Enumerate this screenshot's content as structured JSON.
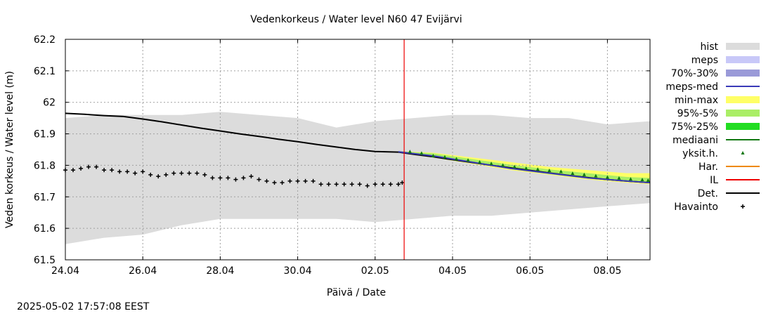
{
  "chart_data": {
    "type": "line",
    "title": "Vedenkorkeus / Water level   N60 47 Evijärvi",
    "xlabel": "Päivä / Date",
    "ylabel": "Veden korkeus / Water level (m)",
    "x_range_days": [
      0,
      15.1
    ],
    "ylim": [
      61.5,
      62.2
    ],
    "grid": true,
    "legend_position": "right",
    "x_ticks": [
      {
        "day": 0,
        "label": "24.04"
      },
      {
        "day": 2,
        "label": "26.04"
      },
      {
        "day": 4,
        "label": "28.04"
      },
      {
        "day": 6,
        "label": "30.04"
      },
      {
        "day": 8,
        "label": "02.05"
      },
      {
        "day": 10,
        "label": "04.05"
      },
      {
        "day": 12,
        "label": "06.05"
      },
      {
        "day": 14,
        "label": "08.05"
      }
    ],
    "y_ticks": [
      {
        "value": 62.2,
        "label": "62.2"
      },
      {
        "value": 62.1,
        "label": "62.1"
      },
      {
        "value": 62.0,
        "label": "62"
      },
      {
        "value": 61.9,
        "label": "61.9"
      },
      {
        "value": 61.8,
        "label": "61.8"
      },
      {
        "value": 61.7,
        "label": "61.7"
      },
      {
        "value": 61.6,
        "label": "61.6"
      },
      {
        "value": 61.5,
        "label": "61.5"
      }
    ],
    "current_time_day": 8.75,
    "legend": [
      {
        "label": "hist",
        "kind": "box",
        "color": "#dcdcdc"
      },
      {
        "label": "meps",
        "kind": "box",
        "color": "#c8c8f8"
      },
      {
        "label": "70%-30%",
        "kind": "box",
        "color": "#9a9ad8"
      },
      {
        "label": "meps-med",
        "kind": "line",
        "color": "#3a3ab8"
      },
      {
        "label": "min-max",
        "kind": "box",
        "color": "#ffff66"
      },
      {
        "label": "95%-5%",
        "kind": "box",
        "color": "#aaee66"
      },
      {
        "label": "75%-25%",
        "kind": "box",
        "color": "#22dd22"
      },
      {
        "label": "mediaani",
        "kind": "line",
        "color": "#117711"
      },
      {
        "label": "yksit.h.",
        "kind": "dot",
        "color": "#117711"
      },
      {
        "label": "Har.",
        "kind": "line",
        "color": "#ee8800"
      },
      {
        "label": "IL",
        "kind": "line",
        "color": "#ee0000"
      },
      {
        "label": "Det.",
        "kind": "line",
        "color": "#000000"
      },
      {
        "label": "Havainto",
        "kind": "plus",
        "color": "#000000"
      }
    ],
    "series": [
      {
        "name": "hist",
        "kind": "band",
        "color": "#dcdcdc",
        "x": [
          0,
          1,
          2,
          3,
          4,
          5,
          6,
          7,
          8,
          9,
          10,
          11,
          12,
          13,
          14,
          15.1
        ],
        "upper": [
          61.95,
          61.96,
          61.96,
          61.96,
          61.97,
          61.96,
          61.95,
          61.92,
          61.94,
          61.95,
          61.96,
          61.96,
          61.95,
          61.95,
          61.93,
          61.94
        ],
        "lower": [
          61.55,
          61.57,
          61.58,
          61.61,
          61.63,
          61.63,
          61.63,
          61.63,
          61.62,
          61.63,
          61.64,
          61.64,
          61.65,
          61.66,
          61.67,
          61.68
        ]
      },
      {
        "name": "min-max",
        "kind": "band",
        "color": "#ffff66",
        "x": [
          8.6,
          9.5,
          10.5,
          11.5,
          12.5,
          13.5,
          14.5,
          15.1
        ],
        "upper": [
          61.845,
          61.84,
          61.825,
          61.81,
          61.795,
          61.785,
          61.775,
          61.775
        ],
        "lower": [
          61.84,
          61.825,
          61.805,
          61.785,
          61.77,
          61.755,
          61.745,
          61.74
        ]
      },
      {
        "name": "95%-5%",
        "kind": "band",
        "color": "#aaee66",
        "x": [
          8.6,
          9.5,
          10.5,
          11.5,
          12.5,
          13.5,
          14.5,
          15.1
        ],
        "upper": [
          61.845,
          61.838,
          61.82,
          61.802,
          61.787,
          61.775,
          61.763,
          61.76
        ],
        "lower": [
          61.84,
          61.827,
          61.808,
          61.788,
          61.772,
          61.758,
          61.748,
          61.743
        ]
      },
      {
        "name": "Det.",
        "kind": "line",
        "color": "#000000",
        "x": [
          0,
          0.5,
          1,
          1.5,
          2,
          2.5,
          3,
          3.5,
          4,
          4.5,
          5,
          5.5,
          6,
          6.5,
          7,
          7.5,
          8,
          8.6,
          9,
          9.5,
          10,
          10.5,
          11,
          11.5,
          12,
          12.5,
          13,
          13.5,
          14,
          14.5,
          15.1
        ],
        "values": [
          61.965,
          61.962,
          61.958,
          61.955,
          61.947,
          61.938,
          61.928,
          61.918,
          61.909,
          61.9,
          61.892,
          61.883,
          61.875,
          61.866,
          61.858,
          61.85,
          61.844,
          61.842,
          61.835,
          61.827,
          61.818,
          61.809,
          61.8,
          61.792,
          61.784,
          61.776,
          61.768,
          61.761,
          61.755,
          61.75,
          61.745
        ]
      },
      {
        "name": "meps-med",
        "kind": "line",
        "color": "#3a3ab8",
        "x": [
          8.6,
          9.5,
          10.5,
          11.5,
          12.5,
          13.5,
          14.5,
          15.1
        ],
        "values": [
          61.843,
          61.83,
          61.81,
          61.79,
          61.775,
          61.76,
          61.75,
          61.745
        ]
      },
      {
        "name": "IL",
        "kind": "vline",
        "color": "#ee0000",
        "x": 8.75
      },
      {
        "name": "Havainto",
        "kind": "plus",
        "color": "#000000",
        "x": [
          0,
          0.2,
          0.4,
          0.6,
          0.8,
          1,
          1.2,
          1.4,
          1.6,
          1.8,
          2,
          2.2,
          2.4,
          2.6,
          2.8,
          3,
          3.2,
          3.4,
          3.6,
          3.8,
          4,
          4.2,
          4.4,
          4.6,
          4.8,
          5,
          5.2,
          5.4,
          5.6,
          5.8,
          6,
          6.2,
          6.4,
          6.6,
          6.8,
          7,
          7.2,
          7.4,
          7.6,
          7.8,
          8,
          8.2,
          8.4,
          8.6,
          8.7
        ],
        "values": [
          61.785,
          61.785,
          61.79,
          61.795,
          61.795,
          61.785,
          61.785,
          61.78,
          61.78,
          61.775,
          61.78,
          61.77,
          61.765,
          61.77,
          61.775,
          61.775,
          61.775,
          61.775,
          61.77,
          61.76,
          61.76,
          61.76,
          61.755,
          61.76,
          61.765,
          61.755,
          61.75,
          61.745,
          61.745,
          61.75,
          61.75,
          61.75,
          61.75,
          61.74,
          61.74,
          61.74,
          61.74,
          61.74,
          61.74,
          61.735,
          61.74,
          61.74,
          61.74,
          61.74,
          61.745
        ]
      },
      {
        "name": "yksit.h.",
        "kind": "dots",
        "color": "#117711",
        "x": [
          8.9,
          9.2,
          9.5,
          9.8,
          10.1,
          10.4,
          10.7,
          11.0,
          11.3,
          11.6,
          11.9,
          12.2,
          12.5,
          12.8,
          13.1,
          13.4,
          13.7,
          14.0,
          14.3,
          14.6,
          14.9,
          15.05
        ],
        "values": [
          61.843,
          61.838,
          61.83,
          61.826,
          61.82,
          61.816,
          61.81,
          61.805,
          61.8,
          61.795,
          61.79,
          61.787,
          61.783,
          61.78,
          61.774,
          61.77,
          61.766,
          61.762,
          61.759,
          61.756,
          61.754,
          61.752
        ]
      }
    ]
  },
  "footer": {
    "timestamp": "2025-05-02 17:57:08 EEST"
  }
}
